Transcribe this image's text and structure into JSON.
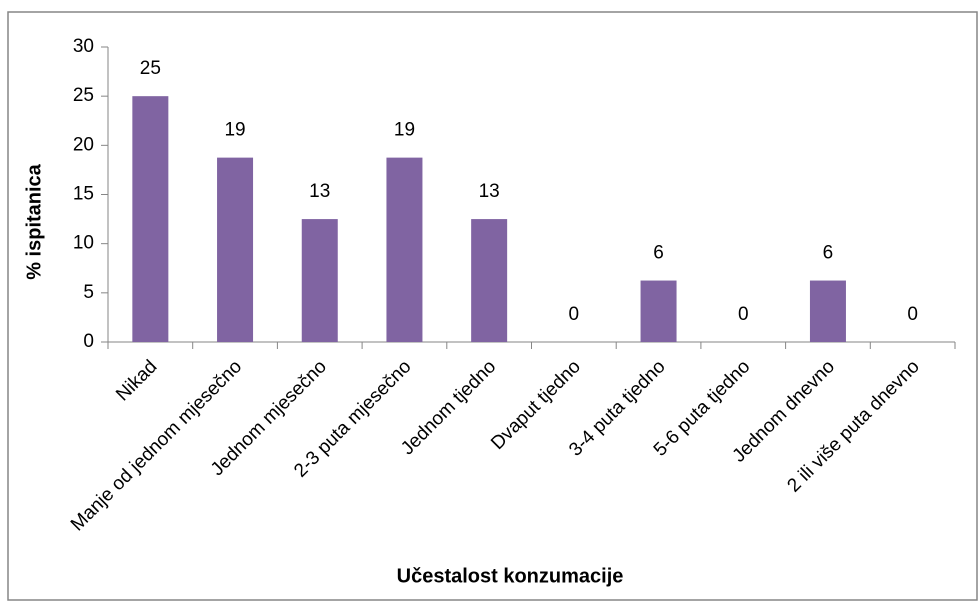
{
  "chart_data": {
    "type": "bar",
    "categories": [
      "Nikad",
      "Manje od jednom mjesečno",
      "Jednom mjesečno",
      "2-3 puta mjesečno",
      "Jednom tjedno",
      "Dvaput tjedno",
      "3-4 puta tjedno",
      "5-6 puta tjedno",
      "Jednom dnevno",
      "2 ili više puta dnevno"
    ],
    "values": [
      25,
      18.75,
      12.5,
      18.75,
      12.5,
      0,
      6.25,
      0,
      6.25,
      0
    ],
    "value_labels": [
      "25",
      "19",
      "13",
      "19",
      "13",
      "0",
      "6",
      "0",
      "6",
      "0"
    ],
    "color": "#8064a2",
    "ylim": [
      0,
      30
    ],
    "yticks": [
      0,
      5,
      10,
      15,
      20,
      25,
      30
    ],
    "ylabel": "% ispitanica",
    "xlabel": "Učestalost konzumacije"
  }
}
